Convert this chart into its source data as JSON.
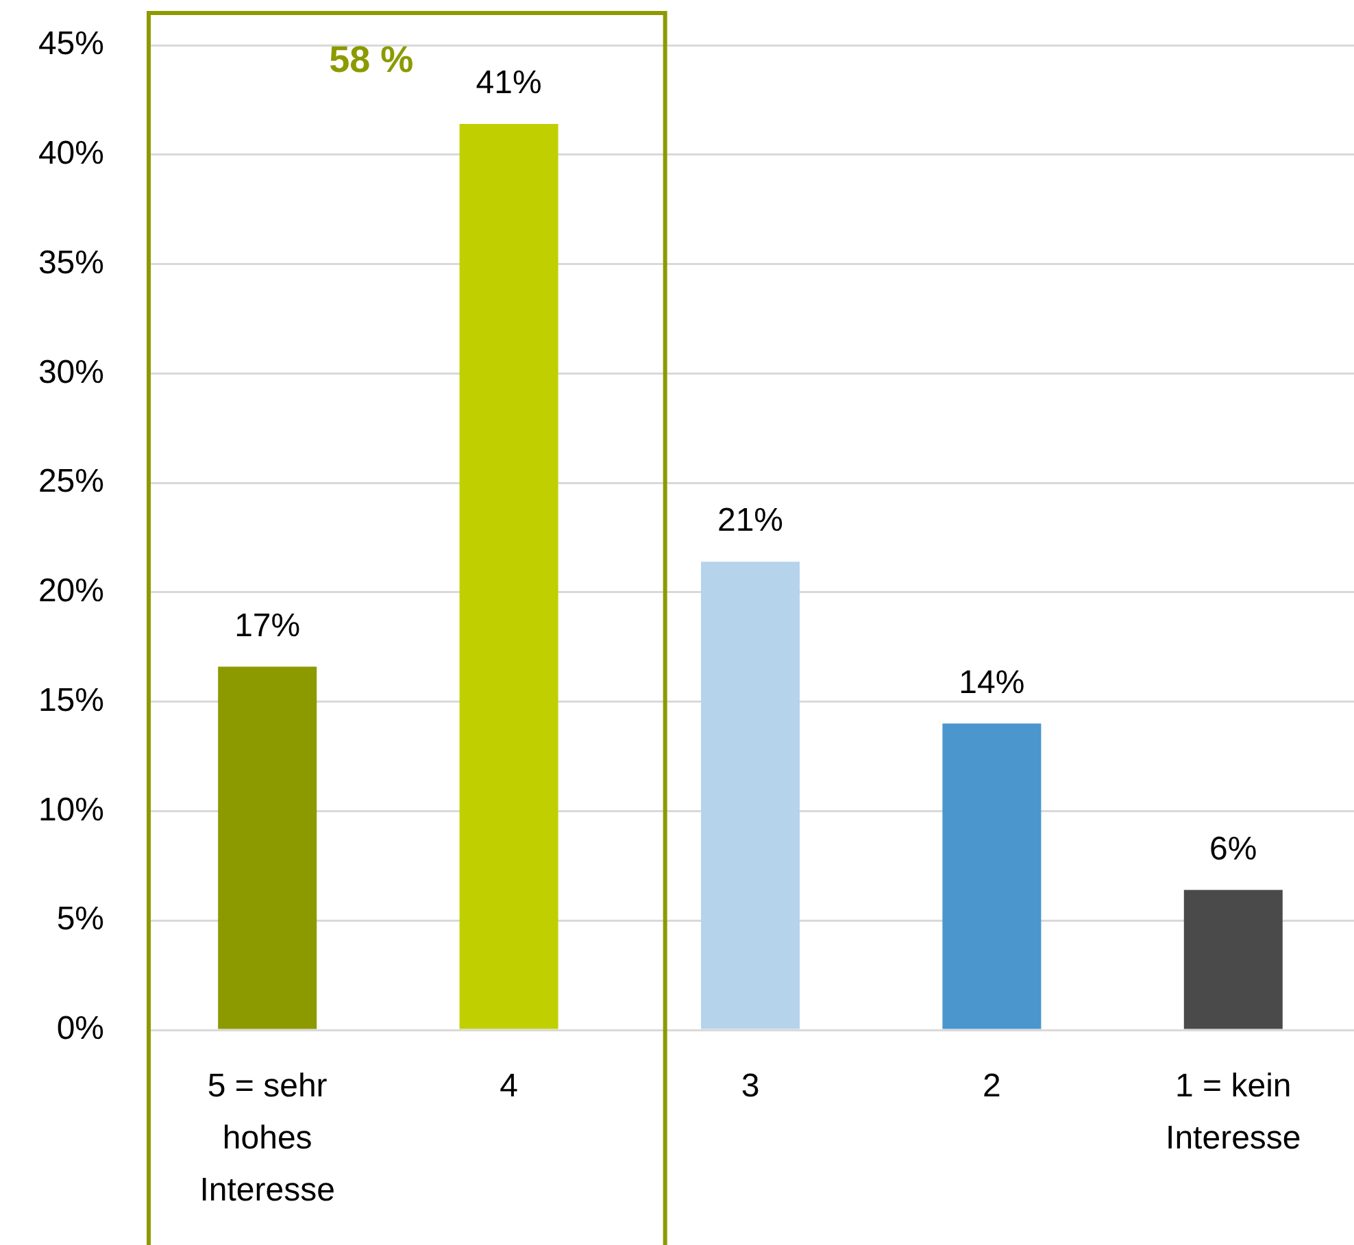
{
  "chart_data": {
    "type": "bar",
    "categories": [
      "5 = sehr hohes Interesse",
      "4",
      "3",
      "2",
      "1 = kein Interesse"
    ],
    "values": [
      16.6,
      41.4,
      21.4,
      14.0,
      6.4
    ],
    "colors": [
      "#8c9a00",
      "#c0cf00",
      "#b5d3eb",
      "#4a96cd",
      "#4a4a4a"
    ],
    "value_labels": [
      "17%",
      "41%",
      "21%",
      "14%",
      "6%"
    ],
    "ylim": [
      0,
      45
    ],
    "yticks": [
      {
        "value": 0,
        "label": "0%"
      },
      {
        "value": 5,
        "label": "5%"
      },
      {
        "value": 10,
        "label": "10%"
      },
      {
        "value": 15,
        "label": "15%"
      },
      {
        "value": 20,
        "label": "20%"
      },
      {
        "value": 25,
        "label": "25%"
      },
      {
        "value": 30,
        "label": "30%"
      },
      {
        "value": 35,
        "label": "35%"
      },
      {
        "value": 40,
        "label": "40%"
      },
      {
        "value": 45,
        "label": "45%"
      }
    ],
    "grid": "y",
    "annotations": [
      "58 %"
    ]
  }
}
